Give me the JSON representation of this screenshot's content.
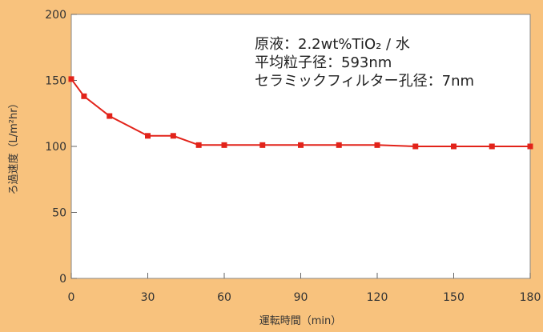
{
  "chart_data": {
    "type": "line",
    "xlabel": "運転時間（min）",
    "ylabel": "ろ過速度（L/m²hr）",
    "xlim": [
      0,
      180
    ],
    "ylim": [
      0,
      200
    ],
    "x_ticks": [
      "0",
      "30",
      "60",
      "90",
      "120",
      "150",
      "180"
    ],
    "y_ticks": [
      "0",
      "50",
      "100",
      "150",
      "200"
    ],
    "grid": false,
    "series": [
      {
        "x": [
          0,
          5,
          15,
          30,
          40,
          50,
          60,
          75,
          90,
          105,
          120,
          135,
          150,
          165,
          180
        ],
        "values": [
          151,
          138,
          123,
          108,
          108,
          101,
          101,
          101,
          101,
          101,
          101,
          100,
          100,
          100,
          100
        ]
      }
    ],
    "annotations": [
      "原液：2.2wt%TiO₂ / 水",
      "平均粒子径：593nm",
      "セラミックフィルター孔径：7nm"
    ],
    "colors": {
      "line": "#e2231a",
      "background": "#f8c27d",
      "plot_area": "#ffffff",
      "frame": "#888888"
    }
  }
}
